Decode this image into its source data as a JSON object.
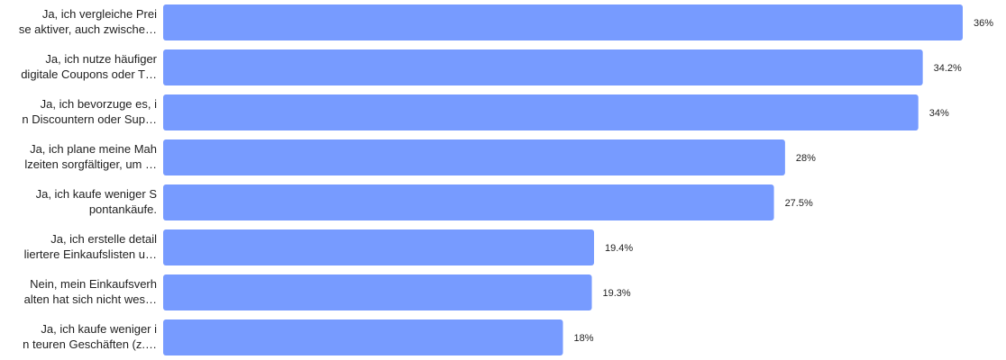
{
  "chart_data": {
    "type": "bar",
    "orientation": "horizontal",
    "categories": [
      [
        "Ja, ich vergleiche Prei",
        "se aktiver, auch zwische…"
      ],
      [
        "Ja, ich nutze häufiger",
        "digitale Coupons oder T…"
      ],
      [
        "Ja, ich bevorzuge es, i",
        "n Discountern oder Sup…"
      ],
      [
        "Ja, ich plane meine Mah",
        "lzeiten sorgfältiger, um …"
      ],
      [
        "Ja, ich kaufe weniger S",
        "pontankäufe."
      ],
      [
        "Ja, ich erstelle detail",
        "liertere Einkaufslisten u…"
      ],
      [
        "Nein, mein Einkaufsverh",
        "alten hat sich nicht wes…"
      ],
      [
        "Ja, ich kaufe weniger i",
        "n teuren Geschäften (z.…"
      ]
    ],
    "values": [
      36,
      34.2,
      34,
      28,
      27.5,
      19.4,
      19.3,
      18
    ],
    "value_labels": [
      "36%",
      "34.2%",
      "34%",
      "28%",
      "27.5%",
      "19.4%",
      "19.3%",
      "18%"
    ],
    "xlim": [
      0,
      36
    ],
    "bar_color": "#779bff",
    "grid": false,
    "legend": "none"
  }
}
